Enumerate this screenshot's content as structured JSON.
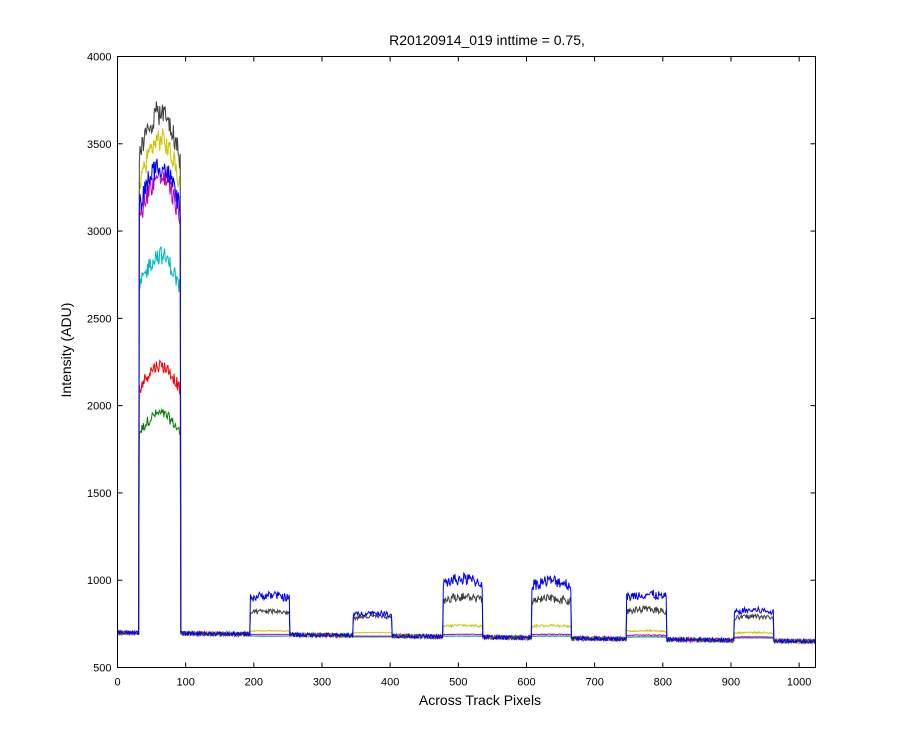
{
  "chart_data": {
    "type": "line",
    "title": "R20120914_019 inttime = 0.75,",
    "xlabel": "Across Track Pixels",
    "ylabel": "Intensity (ADU)",
    "xlim": [
      0,
      1024
    ],
    "ylim": [
      500,
      4000
    ],
    "xticks": [
      0,
      100,
      200,
      300,
      400,
      500,
      600,
      700,
      800,
      900,
      1000
    ],
    "yticks": [
      500,
      1000,
      1500,
      2000,
      2500,
      3000,
      3500,
      4000
    ],
    "grid": false,
    "legend": "none",
    "baseline": {
      "start": 700,
      "end": 650
    },
    "bands": [
      {
        "start": 32,
        "end": 92
      },
      {
        "start": 195,
        "end": 252
      },
      {
        "start": 346,
        "end": 402
      },
      {
        "start": 478,
        "end": 535
      },
      {
        "start": 608,
        "end": 665
      },
      {
        "start": 747,
        "end": 805
      },
      {
        "start": 905,
        "end": 962
      }
    ],
    "series": [
      {
        "color": "#404040",
        "levels": [
          3620,
          820,
          790,
          900,
          890,
          830,
          790
        ]
      },
      {
        "color": "#c8c800",
        "levels": [
          3470,
          710,
          700,
          740,
          740,
          710,
          700
        ]
      },
      {
        "color": "#0000ff",
        "levels": [
          3320,
          910,
          810,
          1000,
          990,
          915,
          825
        ]
      },
      {
        "color": "#bb00bb",
        "levels": [
          3260,
          690,
          680,
          690,
          690,
          685,
          675
        ]
      },
      {
        "color": "#00bbbb",
        "levels": [
          2820,
          680,
          675,
          680,
          680,
          675,
          670
        ]
      },
      {
        "color": "#ff0000",
        "levels": [
          2200,
          680,
          675,
          680,
          680,
          675,
          670
        ]
      },
      {
        "color": "#008000",
        "levels": [
          1930,
          680,
          675,
          680,
          680,
          675,
          670
        ]
      }
    ]
  }
}
